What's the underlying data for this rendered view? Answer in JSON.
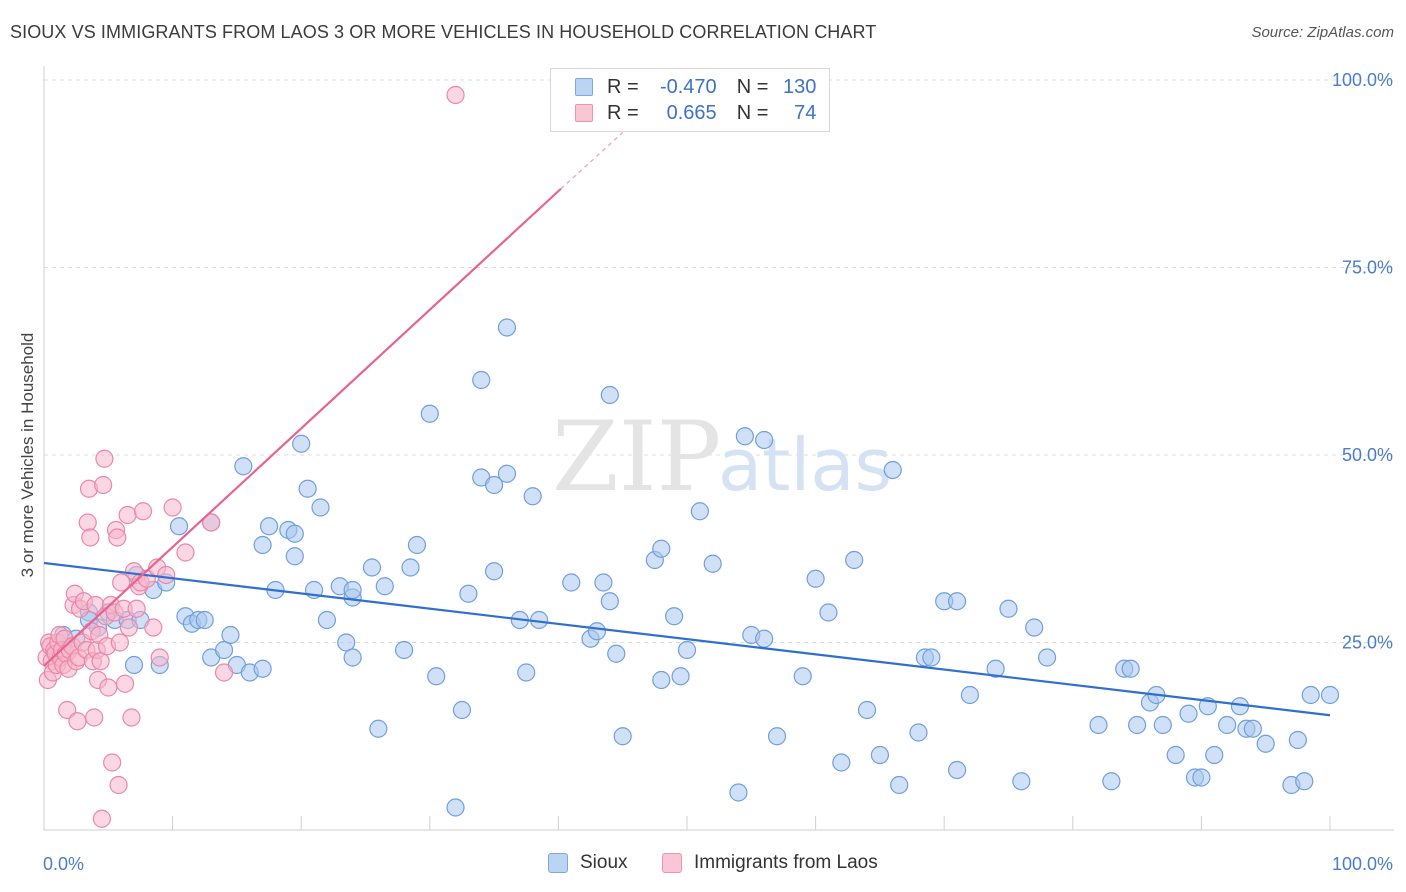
{
  "header": {
    "title": "SIOUX VS IMMIGRANTS FROM LAOS 3 OR MORE VEHICLES IN HOUSEHOLD CORRELATION CHART",
    "source": "Source: ZipAtlas.com"
  },
  "watermark": {
    "zip": "ZIP",
    "atlas": "atlas"
  },
  "legend": {
    "rows": [
      {
        "r_label": "R =",
        "r_value": "-0.470",
        "n_label": "N =",
        "n_value": "130"
      },
      {
        "r_label": "R =",
        "r_value": "0.665",
        "n_label": "N =",
        "n_value": "74"
      }
    ]
  },
  "bottom_legend": {
    "items": [
      "Sioux",
      "Immigrants from Laos"
    ]
  },
  "colors": {
    "sioux_fill": "#a9c6ee",
    "sioux_stroke": "#6f9fdc",
    "sioux_line": "#2f6fd0",
    "laos_fill": "#f6b6cb",
    "laos_stroke": "#ec86a8",
    "laos_line": "#e8638f",
    "grid": "#dcdcdc",
    "tick_text": "#4a7cc9"
  },
  "chart_data": {
    "type": "scatter",
    "title": "SIOUX VS IMMIGRANTS FROM LAOS 3 OR MORE VEHICLES IN HOUSEHOLD CORRELATION CHART",
    "xlabel": "",
    "ylabel": "3 or more Vehicles in Household",
    "xlim": [
      0,
      100
    ],
    "ylim": [
      0,
      100
    ],
    "x_tick_labels": [
      "0.0%",
      "100.0%"
    ],
    "y_tick_labels": [
      "25.0%",
      "50.0%",
      "75.0%",
      "100.0%"
    ],
    "y_ticks": [
      25,
      50,
      75,
      100
    ],
    "x_minor_ticks": [
      10,
      20,
      30,
      40,
      50,
      60,
      70,
      80,
      90,
      100
    ],
    "grid": true,
    "legend_position": "top-center",
    "series": [
      {
        "name": "Sioux",
        "R": -0.47,
        "N": 130,
        "trend": {
          "x": [
            0,
            100
          ],
          "y": [
            35.6,
            15.3
          ]
        },
        "points": [
          [
            1.5,
            26
          ],
          [
            2.5,
            25.5
          ],
          [
            3.5,
            29
          ],
          [
            3.5,
            28
          ],
          [
            4.2,
            27
          ],
          [
            5,
            29
          ],
          [
            5.5,
            28
          ],
          [
            6.5,
            28
          ],
          [
            7,
            22
          ],
          [
            7.2,
            34
          ],
          [
            7.5,
            28
          ],
          [
            8.5,
            32
          ],
          [
            9,
            22
          ],
          [
            9.5,
            33
          ],
          [
            10.5,
            40.5
          ],
          [
            11,
            28.5
          ],
          [
            11.5,
            27.5
          ],
          [
            12,
            28
          ],
          [
            12.5,
            28
          ],
          [
            13,
            23
          ],
          [
            13,
            41
          ],
          [
            14,
            24
          ],
          [
            14.5,
            26
          ],
          [
            15,
            22
          ],
          [
            15.5,
            48.5
          ],
          [
            16,
            21
          ],
          [
            17,
            21.5
          ],
          [
            17,
            38
          ],
          [
            17.5,
            40.5
          ],
          [
            18,
            32
          ],
          [
            19,
            40
          ],
          [
            19.5,
            36.5
          ],
          [
            19.5,
            39.5
          ],
          [
            20,
            51.5
          ],
          [
            20.5,
            45.5
          ],
          [
            21,
            32
          ],
          [
            21.5,
            43
          ],
          [
            22,
            28
          ],
          [
            23,
            32.5
          ],
          [
            23.5,
            25
          ],
          [
            24,
            23
          ],
          [
            24,
            31
          ],
          [
            24,
            32
          ],
          [
            25.5,
            35
          ],
          [
            26,
            13.5
          ],
          [
            26.5,
            32.5
          ],
          [
            28,
            24
          ],
          [
            28.5,
            35
          ],
          [
            29,
            38
          ],
          [
            30,
            55.5
          ],
          [
            30.5,
            20.5
          ],
          [
            32,
            3
          ],
          [
            32.5,
            16
          ],
          [
            33,
            31.5
          ],
          [
            34,
            47
          ],
          [
            34,
            60
          ],
          [
            35,
            46
          ],
          [
            35,
            34.5
          ],
          [
            36,
            67
          ],
          [
            36,
            47.5
          ],
          [
            37,
            28
          ],
          [
            37.5,
            21
          ],
          [
            38,
            44.5
          ],
          [
            38.5,
            28
          ],
          [
            41,
            33
          ],
          [
            42.5,
            25.5
          ],
          [
            43,
            26.5
          ],
          [
            43.5,
            33
          ],
          [
            44,
            58
          ],
          [
            44,
            30.5
          ],
          [
            44.5,
            23.5
          ],
          [
            45,
            12.5
          ],
          [
            47.5,
            36
          ],
          [
            48,
            37.5
          ],
          [
            48,
            20
          ],
          [
            49,
            28.5
          ],
          [
            49.5,
            20.5
          ],
          [
            50,
            24
          ],
          [
            51,
            42.5
          ],
          [
            52,
            35.5
          ],
          [
            54,
            5
          ],
          [
            54.5,
            52.5
          ],
          [
            55,
            26
          ],
          [
            56,
            52
          ],
          [
            56,
            25.5
          ],
          [
            57,
            12.5
          ],
          [
            59,
            20.5
          ],
          [
            60,
            33.5
          ],
          [
            61,
            29
          ],
          [
            62,
            9
          ],
          [
            63,
            36
          ],
          [
            64,
            16
          ],
          [
            65,
            10
          ],
          [
            66,
            48
          ],
          [
            66.5,
            6
          ],
          [
            68,
            13
          ],
          [
            68.5,
            23
          ],
          [
            69,
            23
          ],
          [
            70,
            30.5
          ],
          [
            71,
            30.5
          ],
          [
            71,
            8
          ],
          [
            72,
            18
          ],
          [
            74,
            21.5
          ],
          [
            75,
            29.5
          ],
          [
            76,
            6.5
          ],
          [
            77,
            27
          ],
          [
            78,
            23
          ],
          [
            82,
            14
          ],
          [
            83,
            6.5
          ],
          [
            84,
            21.5
          ],
          [
            84.5,
            21.5
          ],
          [
            85,
            14
          ],
          [
            86,
            17
          ],
          [
            86.5,
            18
          ],
          [
            87,
            14
          ],
          [
            88,
            10
          ],
          [
            89,
            15.5
          ],
          [
            89.5,
            7
          ],
          [
            90,
            7
          ],
          [
            90.5,
            16.5
          ],
          [
            91,
            10
          ],
          [
            92,
            14
          ],
          [
            93,
            16.5
          ],
          [
            93.5,
            13.5
          ],
          [
            94,
            13.5
          ],
          [
            95,
            11.5
          ],
          [
            97,
            6
          ],
          [
            97.5,
            12
          ],
          [
            98,
            6.5
          ],
          [
            98.5,
            18
          ],
          [
            100,
            18
          ]
        ]
      },
      {
        "name": "Immigrants from Laos",
        "R": 0.665,
        "N": 74,
        "trend": {
          "x": [
            0,
            40.2
          ],
          "y": [
            21.9,
            85.5
          ],
          "dash_to": {
            "x": 45,
            "y": 93
          }
        },
        "points": [
          [
            0.2,
            23
          ],
          [
            0.3,
            20
          ],
          [
            0.4,
            25
          ],
          [
            0.5,
            24.5
          ],
          [
            0.6,
            22.5
          ],
          [
            0.7,
            21
          ],
          [
            0.8,
            24
          ],
          [
            0.9,
            23.5
          ],
          [
            1,
            22
          ],
          [
            1.1,
            25
          ],
          [
            1.2,
            26
          ],
          [
            1.3,
            23
          ],
          [
            1.4,
            24
          ],
          [
            1.5,
            22
          ],
          [
            1.6,
            25.5
          ],
          [
            1.7,
            23.5
          ],
          [
            1.8,
            16
          ],
          [
            1.9,
            21.5
          ],
          [
            2,
            24
          ],
          [
            2.2,
            24.5
          ],
          [
            2.3,
            30
          ],
          [
            2.4,
            31.5
          ],
          [
            2.5,
            22.5
          ],
          [
            2.6,
            14.5
          ],
          [
            2.7,
            23
          ],
          [
            2.8,
            29.5
          ],
          [
            3,
            25
          ],
          [
            3.1,
            30.5
          ],
          [
            3.3,
            24
          ],
          [
            3.4,
            41
          ],
          [
            3.5,
            45.5
          ],
          [
            3.6,
            39
          ],
          [
            3.7,
            26.5
          ],
          [
            3.8,
            22.5
          ],
          [
            3.9,
            15
          ],
          [
            4,
            30
          ],
          [
            4.1,
            24
          ],
          [
            4.2,
            20
          ],
          [
            4.3,
            26
          ],
          [
            4.4,
            22.5
          ],
          [
            4.5,
            1.5
          ],
          [
            4.6,
            46
          ],
          [
            4.7,
            49.5
          ],
          [
            4.8,
            28.5
          ],
          [
            4.9,
            24.5
          ],
          [
            5,
            19
          ],
          [
            5.2,
            30
          ],
          [
            5.3,
            9
          ],
          [
            5.5,
            29
          ],
          [
            5.6,
            40
          ],
          [
            5.7,
            39
          ],
          [
            5.8,
            6
          ],
          [
            5.9,
            25
          ],
          [
            6,
            33
          ],
          [
            6.2,
            29.5
          ],
          [
            6.3,
            19.5
          ],
          [
            6.5,
            42
          ],
          [
            6.6,
            27
          ],
          [
            6.8,
            15
          ],
          [
            7,
            34.5
          ],
          [
            7.2,
            29.5
          ],
          [
            7.4,
            32.5
          ],
          [
            7.5,
            33
          ],
          [
            7.7,
            42.5
          ],
          [
            8,
            33.5
          ],
          [
            8.5,
            27
          ],
          [
            8.8,
            35
          ],
          [
            9,
            23
          ],
          [
            9.5,
            34
          ],
          [
            10,
            43
          ],
          [
            11,
            37
          ],
          [
            13,
            41
          ],
          [
            14,
            21
          ],
          [
            32,
            98
          ]
        ]
      }
    ]
  }
}
